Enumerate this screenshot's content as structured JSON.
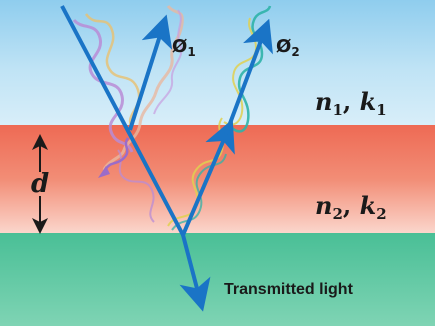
{
  "labels": {
    "phase_1": {
      "base": "Ø",
      "sub": "1"
    },
    "phase_2": {
      "base": "Ø",
      "sub": "2"
    },
    "medium_1": {
      "n": "n",
      "n_sub": "1",
      "sep": ", ",
      "k": "k",
      "k_sub": "1"
    },
    "medium_2": {
      "n": "n",
      "n_sub": "2",
      "sep": ", ",
      "k": "k",
      "k_sub": "2"
    },
    "thickness": "d",
    "transmitted": "Transmitted light"
  },
  "colors": {
    "top_layer": "#a8d8f0",
    "film_layer": "#f07a62",
    "substrate_layer": "#5cc7a0",
    "ray": "#1a74c6",
    "wave_1": "#b98cd6",
    "wave_2": "#e8c070",
    "wave_3": "#2fb3a8",
    "wave_4": "#e0d050"
  }
}
